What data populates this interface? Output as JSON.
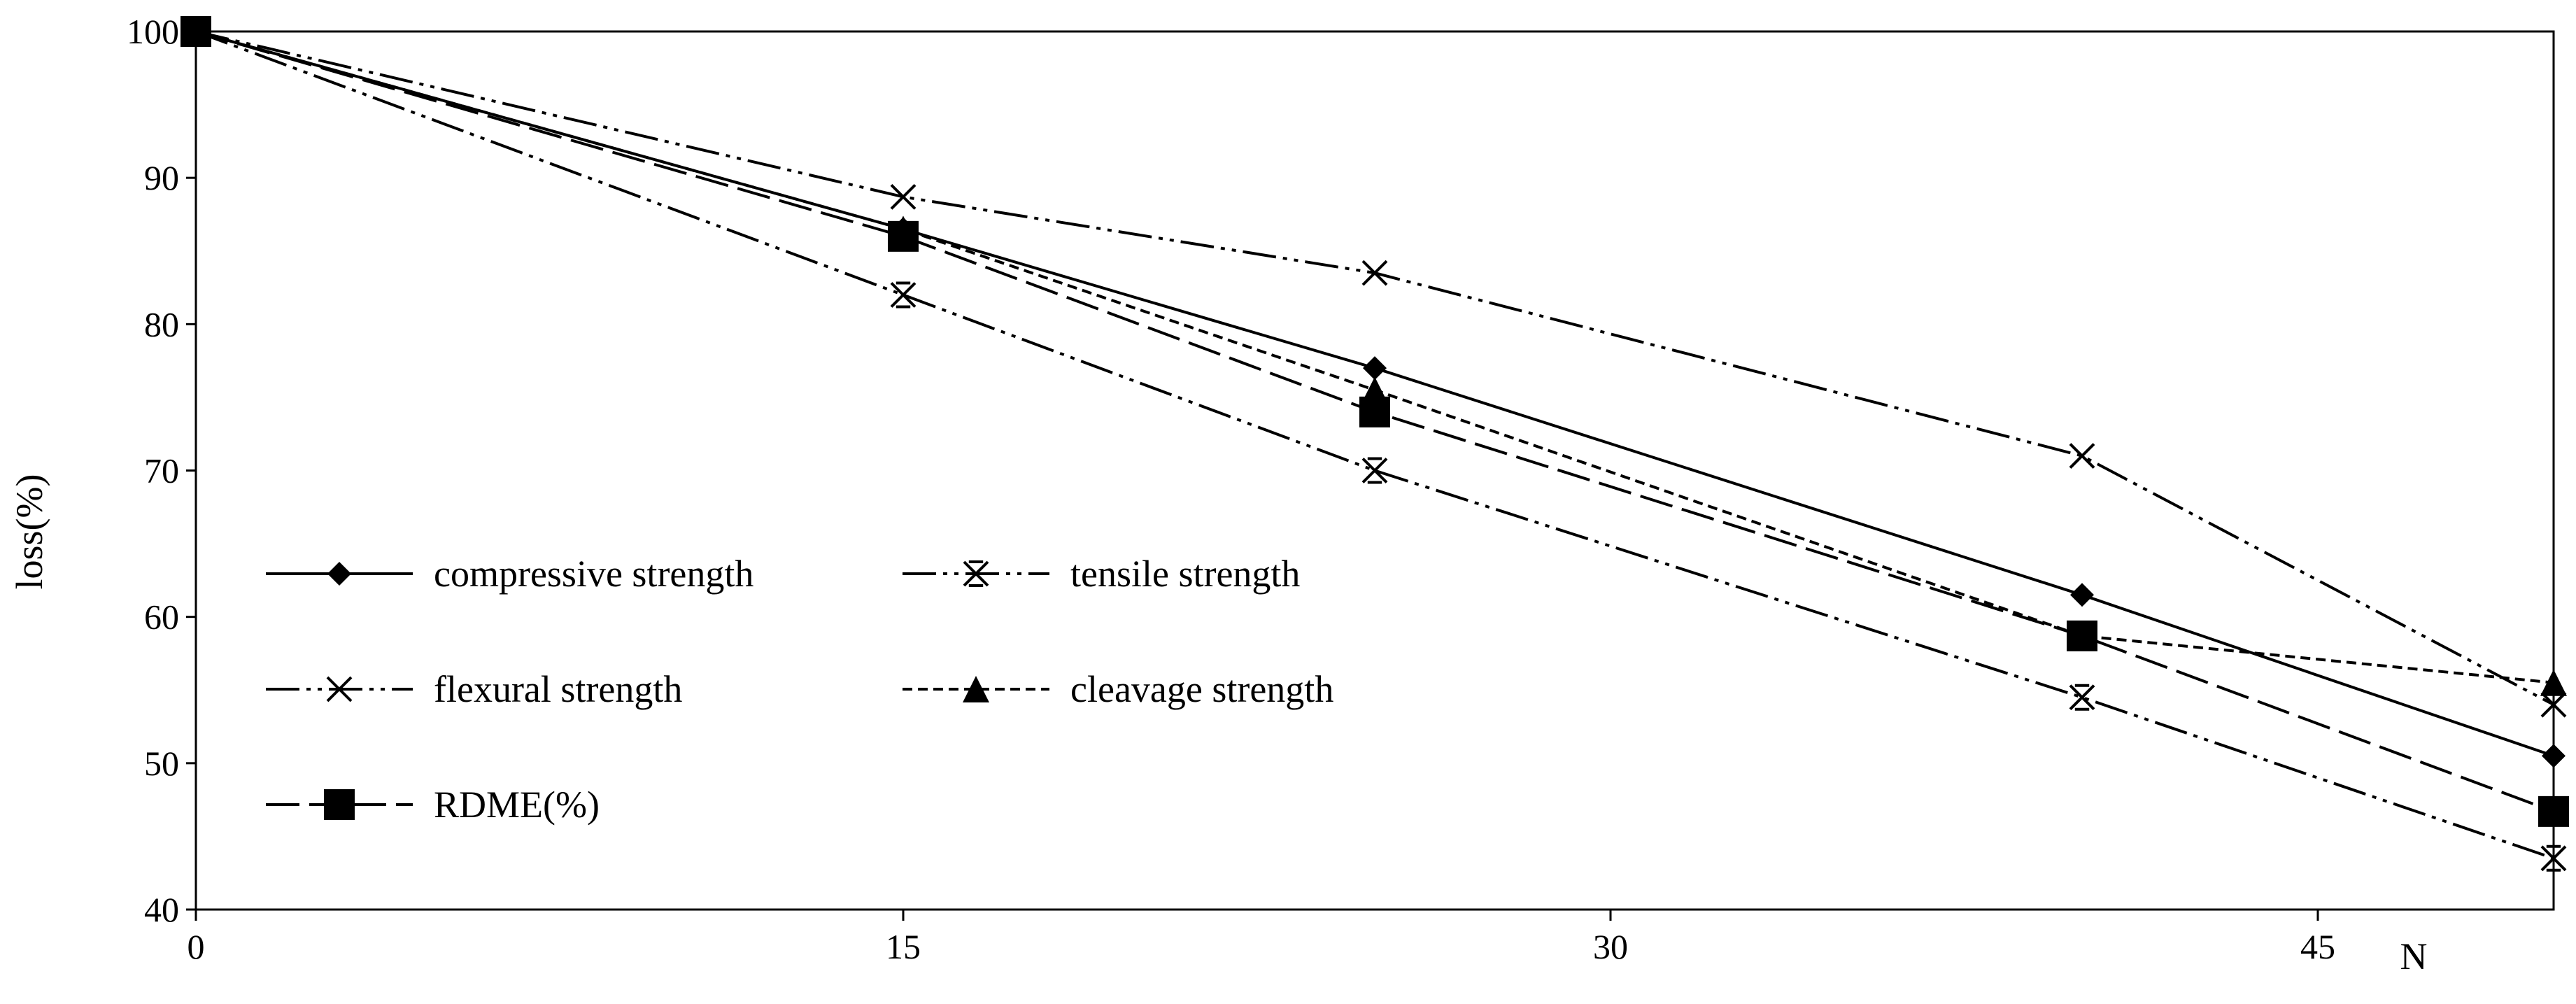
{
  "chart_data": {
    "type": "line",
    "title": "",
    "xlabel": "",
    "ylabel": "loss(%)",
    "x_annotation": "N",
    "xlim": [
      0,
      50
    ],
    "ylim": [
      40,
      100
    ],
    "x_ticks": [
      "0",
      "15",
      "30",
      "45"
    ],
    "y_ticks": [
      "40",
      "50",
      "60",
      "70",
      "80",
      "90",
      "100"
    ],
    "grid": false,
    "legend_position": "lower-left",
    "series": [
      {
        "name": "compressive strength",
        "marker": "diamond",
        "dash": "solid",
        "x": [
          0,
          15,
          25,
          40,
          50
        ],
        "y": [
          100,
          86.5,
          77,
          61.5,
          50.5
        ]
      },
      {
        "name": "tensile strength",
        "marker": "asterisk",
        "dash": "dash-dot-dot",
        "x": [
          0,
          15,
          25,
          40,
          50
        ],
        "y": [
          100,
          82,
          70,
          54.5,
          43.5
        ]
      },
      {
        "name": "flexural strength",
        "marker": "x",
        "dash": "dash-dot-dot",
        "x": [
          0,
          15,
          25,
          40,
          50
        ],
        "y": [
          100,
          88.7,
          83.5,
          71,
          54
        ]
      },
      {
        "name": "cleavage strength",
        "marker": "triangle",
        "dash": "short-dash",
        "x": [
          0,
          15,
          25,
          40,
          50
        ],
        "y": [
          100,
          86.5,
          75.5,
          58.7,
          55.5
        ]
      },
      {
        "name": "RDME(%)",
        "marker": "square",
        "dash": "long-dash",
        "x": [
          0,
          15,
          25,
          40,
          50
        ],
        "y": [
          100,
          86,
          74,
          58.7,
          46.7
        ]
      }
    ]
  }
}
